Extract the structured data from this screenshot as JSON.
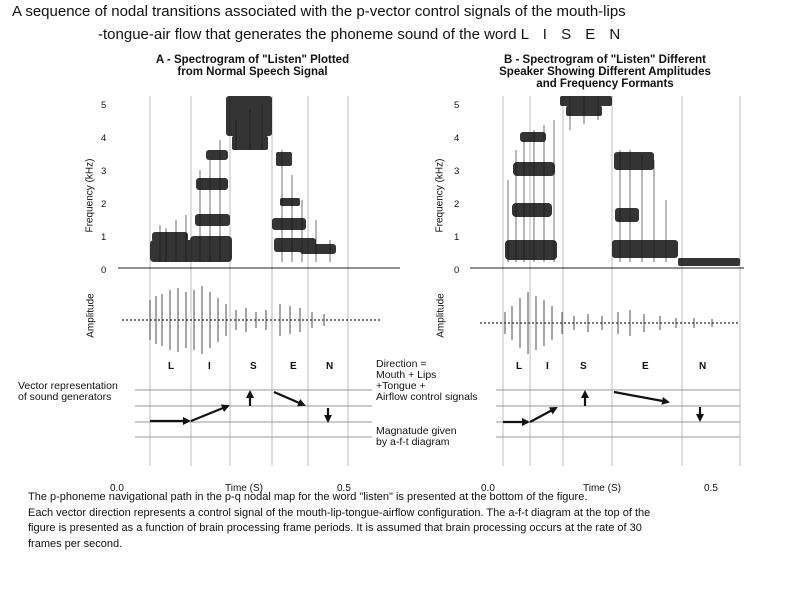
{
  "header": {
    "line1": "A sequence  of nodal transitions associated with the p-vector  control signals of the mouth-lips",
    "line2": "-tongue-air flow that generates the phoneme sound of the word ",
    "word": "L I S E N"
  },
  "panel_a": {
    "title_line1": "A - Spectrogram of \"Listen\" Plotted",
    "title_line2": "from Normal Speech Signal",
    "freq_label": "Frequency (kHz)",
    "amp_label": "Amplitude",
    "freq_ticks": [
      "5",
      "4",
      "3",
      "2",
      "1",
      "0"
    ],
    "letters": [
      "L",
      "I",
      "S",
      "E",
      "N"
    ],
    "x_ticks": [
      "0.0",
      "Time (S)",
      "0.5"
    ]
  },
  "panel_b": {
    "title_line1": "B - Spectrogram of \"Listen\" Different",
    "title_line2": "Speaker Showing Different Amplitudes",
    "title_line3": "and Frequency Formants",
    "freq_label": "Frequency (kHz)",
    "amp_label": "Amplitude",
    "freq_ticks": [
      "5",
      "4",
      "3",
      "2",
      "1",
      "0"
    ],
    "letters": [
      "L",
      "I",
      "S",
      "E",
      "N"
    ],
    "x_ticks": [
      "0.0",
      "Time (S)",
      "0.5"
    ]
  },
  "annotations": {
    "vector_rep_line1": "Vector representation",
    "vector_rep_line2": "of sound generators",
    "direction_line1": "Direction =",
    "direction_line2": "Mouth + Lips",
    "direction_line3": "+Tongue +",
    "direction_line4": "Airflow control signals",
    "magnitude_line1": "Magnatude given",
    "magnitude_line2": "by a-f-t diagram"
  },
  "caption": {
    "line1": "The p-phoneme navigational path in the p-q nodal map for the word \"listen\" is presented at the bottom of the figure.",
    "line2": "Each vector direction represents a control signal of the mouth-lip-tongue-airflow configuration. The a-f-t diagram at the top of the",
    "line3": "figure is presented as a function of brain processing frame periods. It is assumed that brain processing occurs at the rate of 30",
    "line4": "frames per second."
  }
}
